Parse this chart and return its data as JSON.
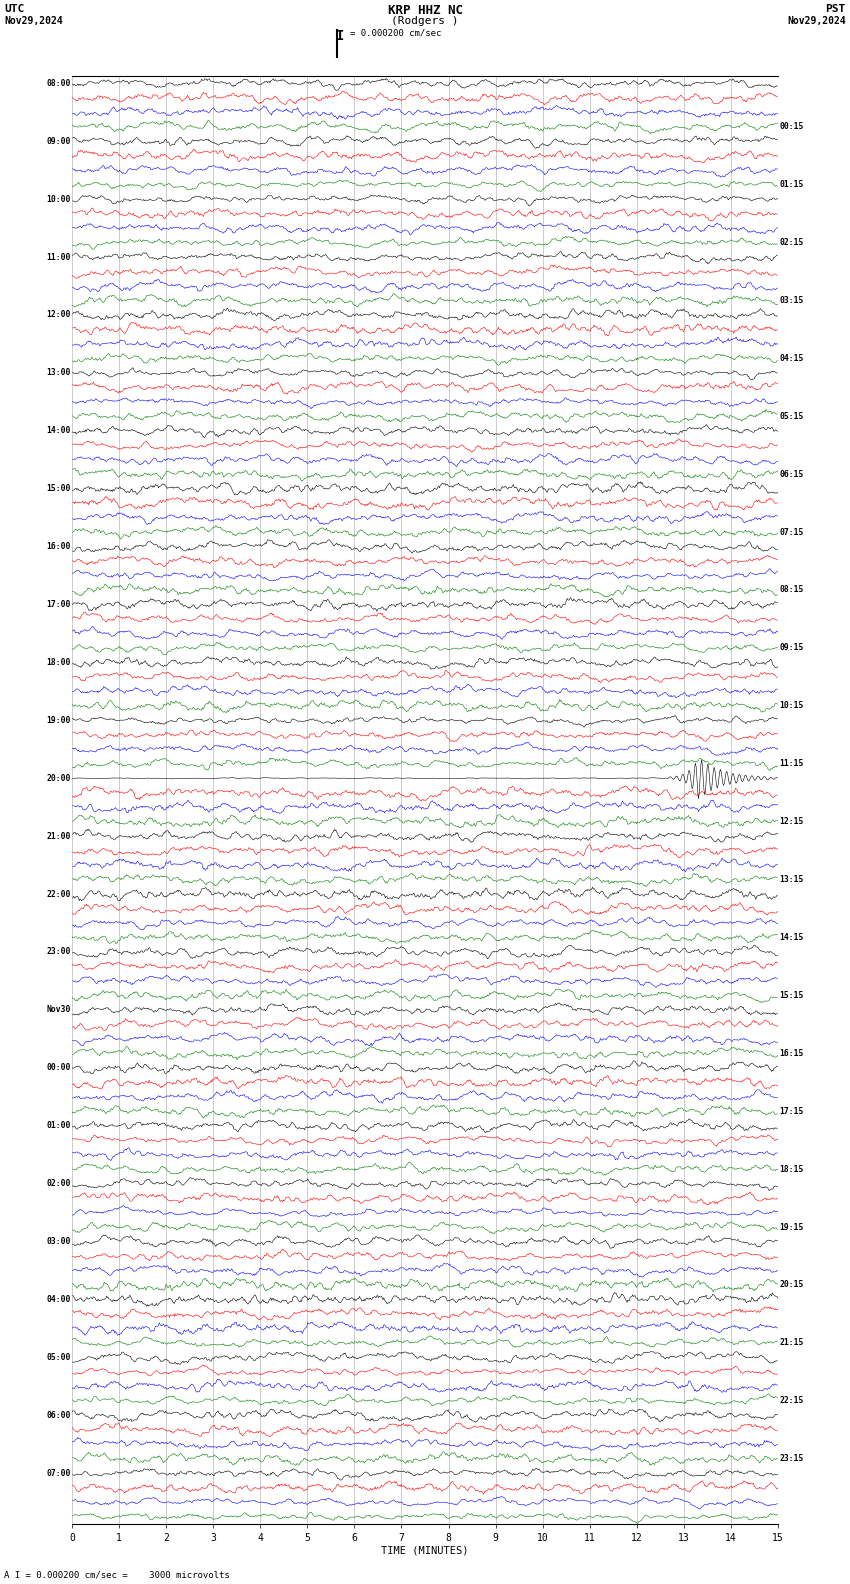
{
  "title_center": "KRP HHZ NC",
  "title_sub": "(Rodgers )",
  "title_left": "UTC",
  "date_left": "Nov29,2024",
  "title_right": "PST",
  "date_right": "Nov29,2024",
  "scale_label": "I = 0.000200 cm/sec",
  "footer_label": "A I = 0.000200 cm/sec =    3000 microvolts",
  "xlabel": "TIME (MINUTES)",
  "xticks": [
    0,
    1,
    2,
    3,
    4,
    5,
    6,
    7,
    8,
    9,
    10,
    11,
    12,
    13,
    14,
    15
  ],
  "left_times": [
    "08:00",
    "09:00",
    "10:00",
    "11:00",
    "12:00",
    "13:00",
    "14:00",
    "15:00",
    "16:00",
    "17:00",
    "18:00",
    "19:00",
    "20:00",
    "21:00",
    "22:00",
    "23:00",
    "Nov30",
    "00:00",
    "01:00",
    "02:00",
    "03:00",
    "04:00",
    "05:00",
    "06:00",
    "07:00"
  ],
  "right_times": [
    "00:15",
    "01:15",
    "02:15",
    "03:15",
    "04:15",
    "05:15",
    "06:15",
    "07:15",
    "08:15",
    "09:15",
    "10:15",
    "11:15",
    "12:15",
    "13:15",
    "14:15",
    "15:15",
    "16:15",
    "17:15",
    "18:15",
    "19:15",
    "20:15",
    "21:15",
    "22:15",
    "23:15"
  ],
  "colors": [
    "black",
    "red",
    "blue",
    "green"
  ],
  "num_rows": 25,
  "traces_per_row": 4,
  "fig_width": 8.5,
  "fig_height": 15.84,
  "dpi": 100,
  "bg_color": "white",
  "grid_color": "#888888",
  "noise_seed": 42,
  "special_row": 12,
  "special_col": 0
}
